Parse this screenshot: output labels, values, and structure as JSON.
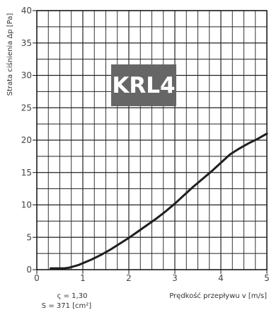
{
  "chart_data": {
    "type": "line",
    "title": "",
    "xlabel": "Prędkość przepływu v [m/s]",
    "ylabel": "Strata ciśnienia Δp [Pa]",
    "xlim": [
      0,
      5
    ],
    "ylim": [
      0,
      40
    ],
    "x_ticks": [
      "0",
      "1",
      "2",
      "3",
      "4",
      "5"
    ],
    "y_ticks": [
      "0",
      "5",
      "10",
      "15",
      "20",
      "25",
      "30",
      "35",
      "40"
    ],
    "grid": true,
    "badge": "KRL4",
    "notes": [
      "ς = 1,30",
      "S = 371 [cm²]"
    ],
    "series": [
      {
        "x": [
          0.3,
          0.4,
          0.5,
          0.6,
          0.7,
          0.8,
          0.9,
          1.0,
          1.2,
          1.4,
          1.6,
          1.8,
          2.0,
          2.2,
          2.4,
          2.6,
          2.8,
          3.0,
          3.2,
          3.4,
          3.6,
          3.8,
          4.0,
          4.2,
          4.4,
          4.6,
          4.8,
          5.0
        ],
        "y": [
          0.2,
          0.2,
          0.2,
          0.2,
          0.3,
          0.5,
          0.7,
          1.0,
          1.6,
          2.3,
          3.1,
          4.0,
          4.9,
          5.9,
          6.9,
          7.9,
          9.0,
          10.2,
          11.5,
          12.8,
          14.0,
          15.2,
          16.5,
          17.8,
          18.7,
          19.5,
          20.2,
          21.0
        ],
        "color": "#1f1f1f"
      }
    ]
  }
}
